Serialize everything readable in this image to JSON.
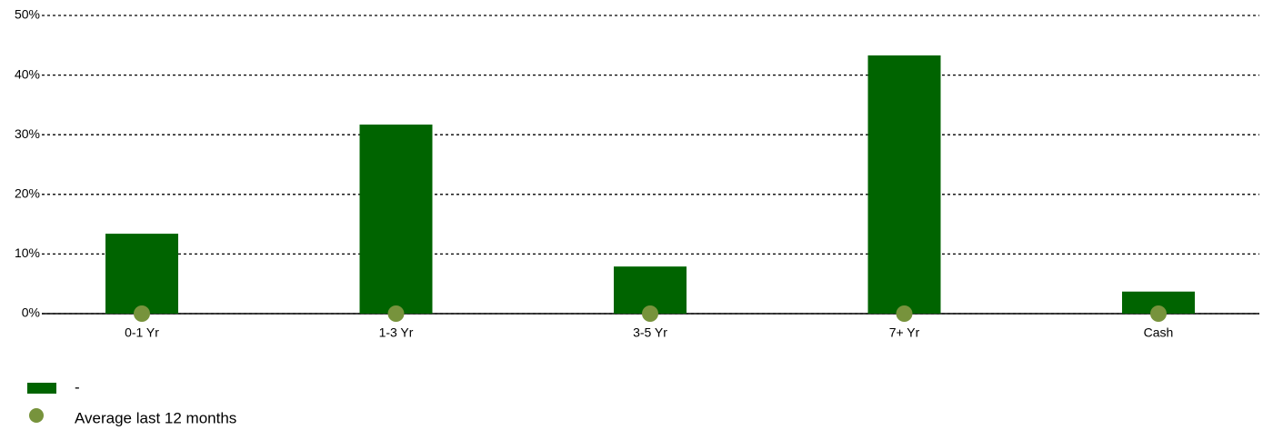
{
  "chart_data": {
    "type": "bar",
    "categories": [
      "0-1 Yr",
      "1-3 Yr",
      "3-5 Yr",
      "7+ Yr",
      "Cash"
    ],
    "series": [
      {
        "name": "-",
        "color": "#006400",
        "type": "bar",
        "values": [
          13.4,
          31.7,
          7.9,
          43.3,
          3.7
        ]
      },
      {
        "name": "Average last 12 months",
        "color": "#77933c",
        "type": "scatter",
        "values": [
          0,
          0,
          0,
          0,
          0
        ]
      }
    ],
    "ylim": [
      0,
      50
    ],
    "yticks": [
      {
        "value": 0,
        "label": "0%"
      },
      {
        "value": 10,
        "label": "10%"
      },
      {
        "value": 20,
        "label": "20%"
      },
      {
        "value": 30,
        "label": "30%"
      },
      {
        "value": 40,
        "label": "40%"
      },
      {
        "value": 50,
        "label": "50%"
      }
    ],
    "grid": true
  }
}
